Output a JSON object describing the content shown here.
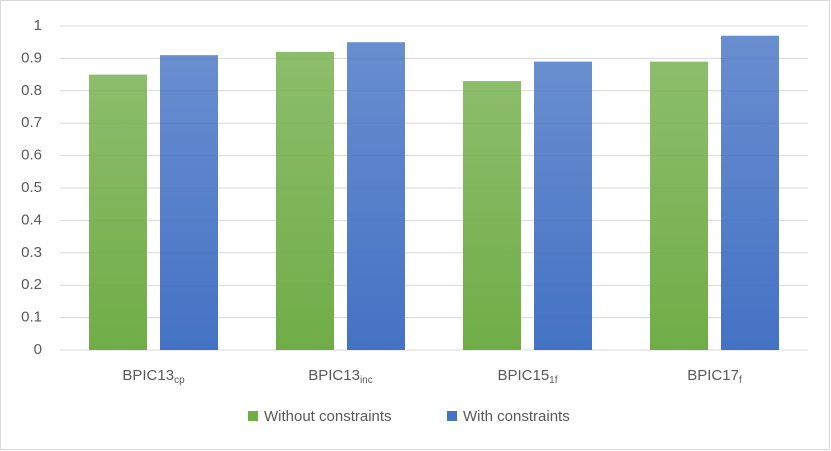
{
  "chart_data": {
    "type": "bar",
    "categories": [
      "BPIC13",
      "BPIC13",
      "BPIC15",
      "BPIC17"
    ],
    "category_subscripts": [
      "cp",
      "inc",
      "1f",
      "f"
    ],
    "series": [
      {
        "name": "Without constraints",
        "color": "#70ad47",
        "values": [
          0.85,
          0.92,
          0.83,
          0.89
        ]
      },
      {
        "name": "With constraints",
        "color": "#4472c4",
        "values": [
          0.91,
          0.95,
          0.89,
          0.97
        ]
      }
    ],
    "ylim": [
      0,
      1
    ],
    "yticks": [
      0,
      0.1,
      0.2,
      0.3,
      0.4,
      0.5,
      0.6,
      0.7,
      0.8,
      0.9,
      1
    ],
    "grid": true,
    "legend": "bottom"
  }
}
